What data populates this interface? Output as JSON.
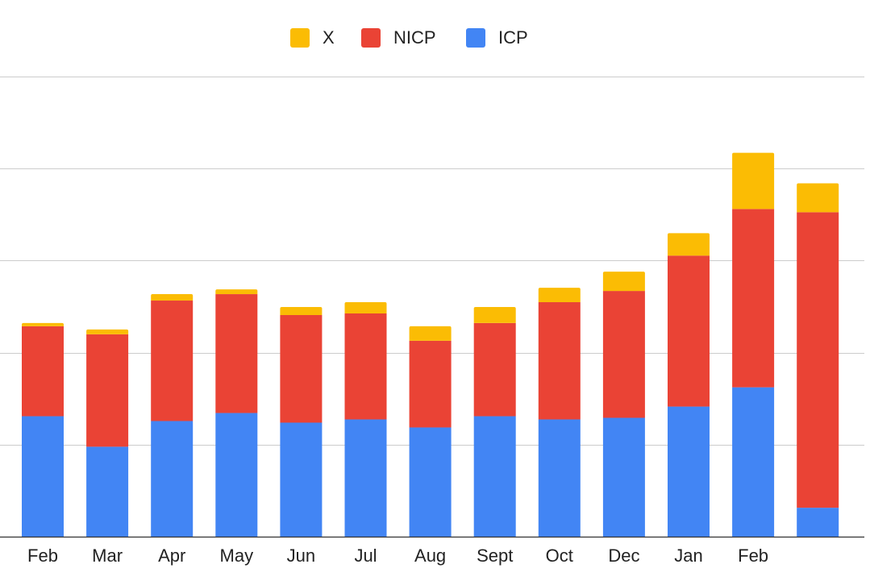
{
  "chart_data": {
    "type": "bar",
    "stacked": true,
    "categories": [
      "Feb",
      "Mar",
      "Apr",
      "May",
      "Jun",
      "Jul",
      "Aug",
      "Sept",
      "Oct",
      "Dec",
      "Jan",
      "Feb",
      ""
    ],
    "series": [
      {
        "name": "ICP",
        "color": "#4285f4",
        "values": [
          15.0,
          11.2,
          14.4,
          15.4,
          14.2,
          14.6,
          13.6,
          15.0,
          14.6,
          14.8,
          16.2,
          18.6,
          3.6
        ]
      },
      {
        "name": "NICP",
        "color": "#ea4335",
        "values": [
          11.2,
          14.0,
          15.0,
          14.8,
          13.4,
          13.2,
          10.8,
          11.6,
          14.6,
          15.8,
          18.8,
          22.2,
          36.8
        ]
      },
      {
        "name": "X",
        "color": "#fbbc04",
        "values": [
          0.4,
          0.6,
          0.8,
          0.6,
          1.0,
          1.4,
          1.8,
          2.0,
          1.8,
          2.4,
          2.8,
          7.0,
          3.6
        ]
      }
    ],
    "legend_order": [
      "X",
      "NICP",
      "ICP"
    ],
    "legend_position": "top",
    "ylim": [
      0,
      57.3
    ],
    "gridlines": [
      0,
      11.46,
      22.92,
      34.38,
      45.84,
      57.3
    ],
    "grid": true,
    "y_tick_labels_shown": false
  }
}
